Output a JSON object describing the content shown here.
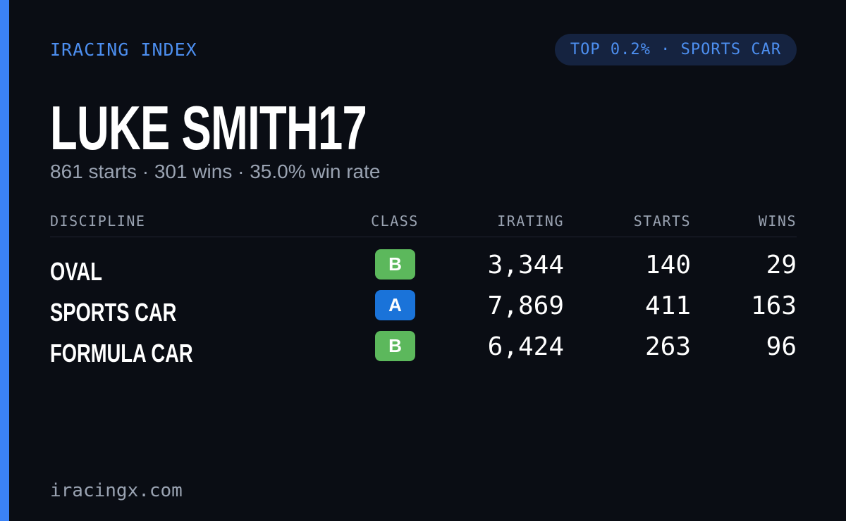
{
  "header": {
    "brand": "IRACING INDEX",
    "badge": "TOP 0.2% · SPORTS CAR"
  },
  "profile": {
    "name": "LUKE SMITH17",
    "summary": "861 starts · 301 wins · 35.0% win rate"
  },
  "table": {
    "columns": [
      "DISCIPLINE",
      "CLASS",
      "IRATING",
      "STARTS",
      "WINS"
    ],
    "rows": [
      {
        "discipline": "OVAL",
        "class": "B",
        "class_color": "#5cb85c",
        "irating": "3,344",
        "starts": "140",
        "wins": "29"
      },
      {
        "discipline": "SPORTS CAR",
        "class": "A",
        "class_color": "#1a73d9",
        "irating": "7,869",
        "starts": "411",
        "wins": "163"
      },
      {
        "discipline": "FORMULA CAR",
        "class": "B",
        "class_color": "#5cb85c",
        "irating": "6,424",
        "starts": "263",
        "wins": "96"
      }
    ]
  },
  "footer": {
    "site": "iracingx.com"
  }
}
